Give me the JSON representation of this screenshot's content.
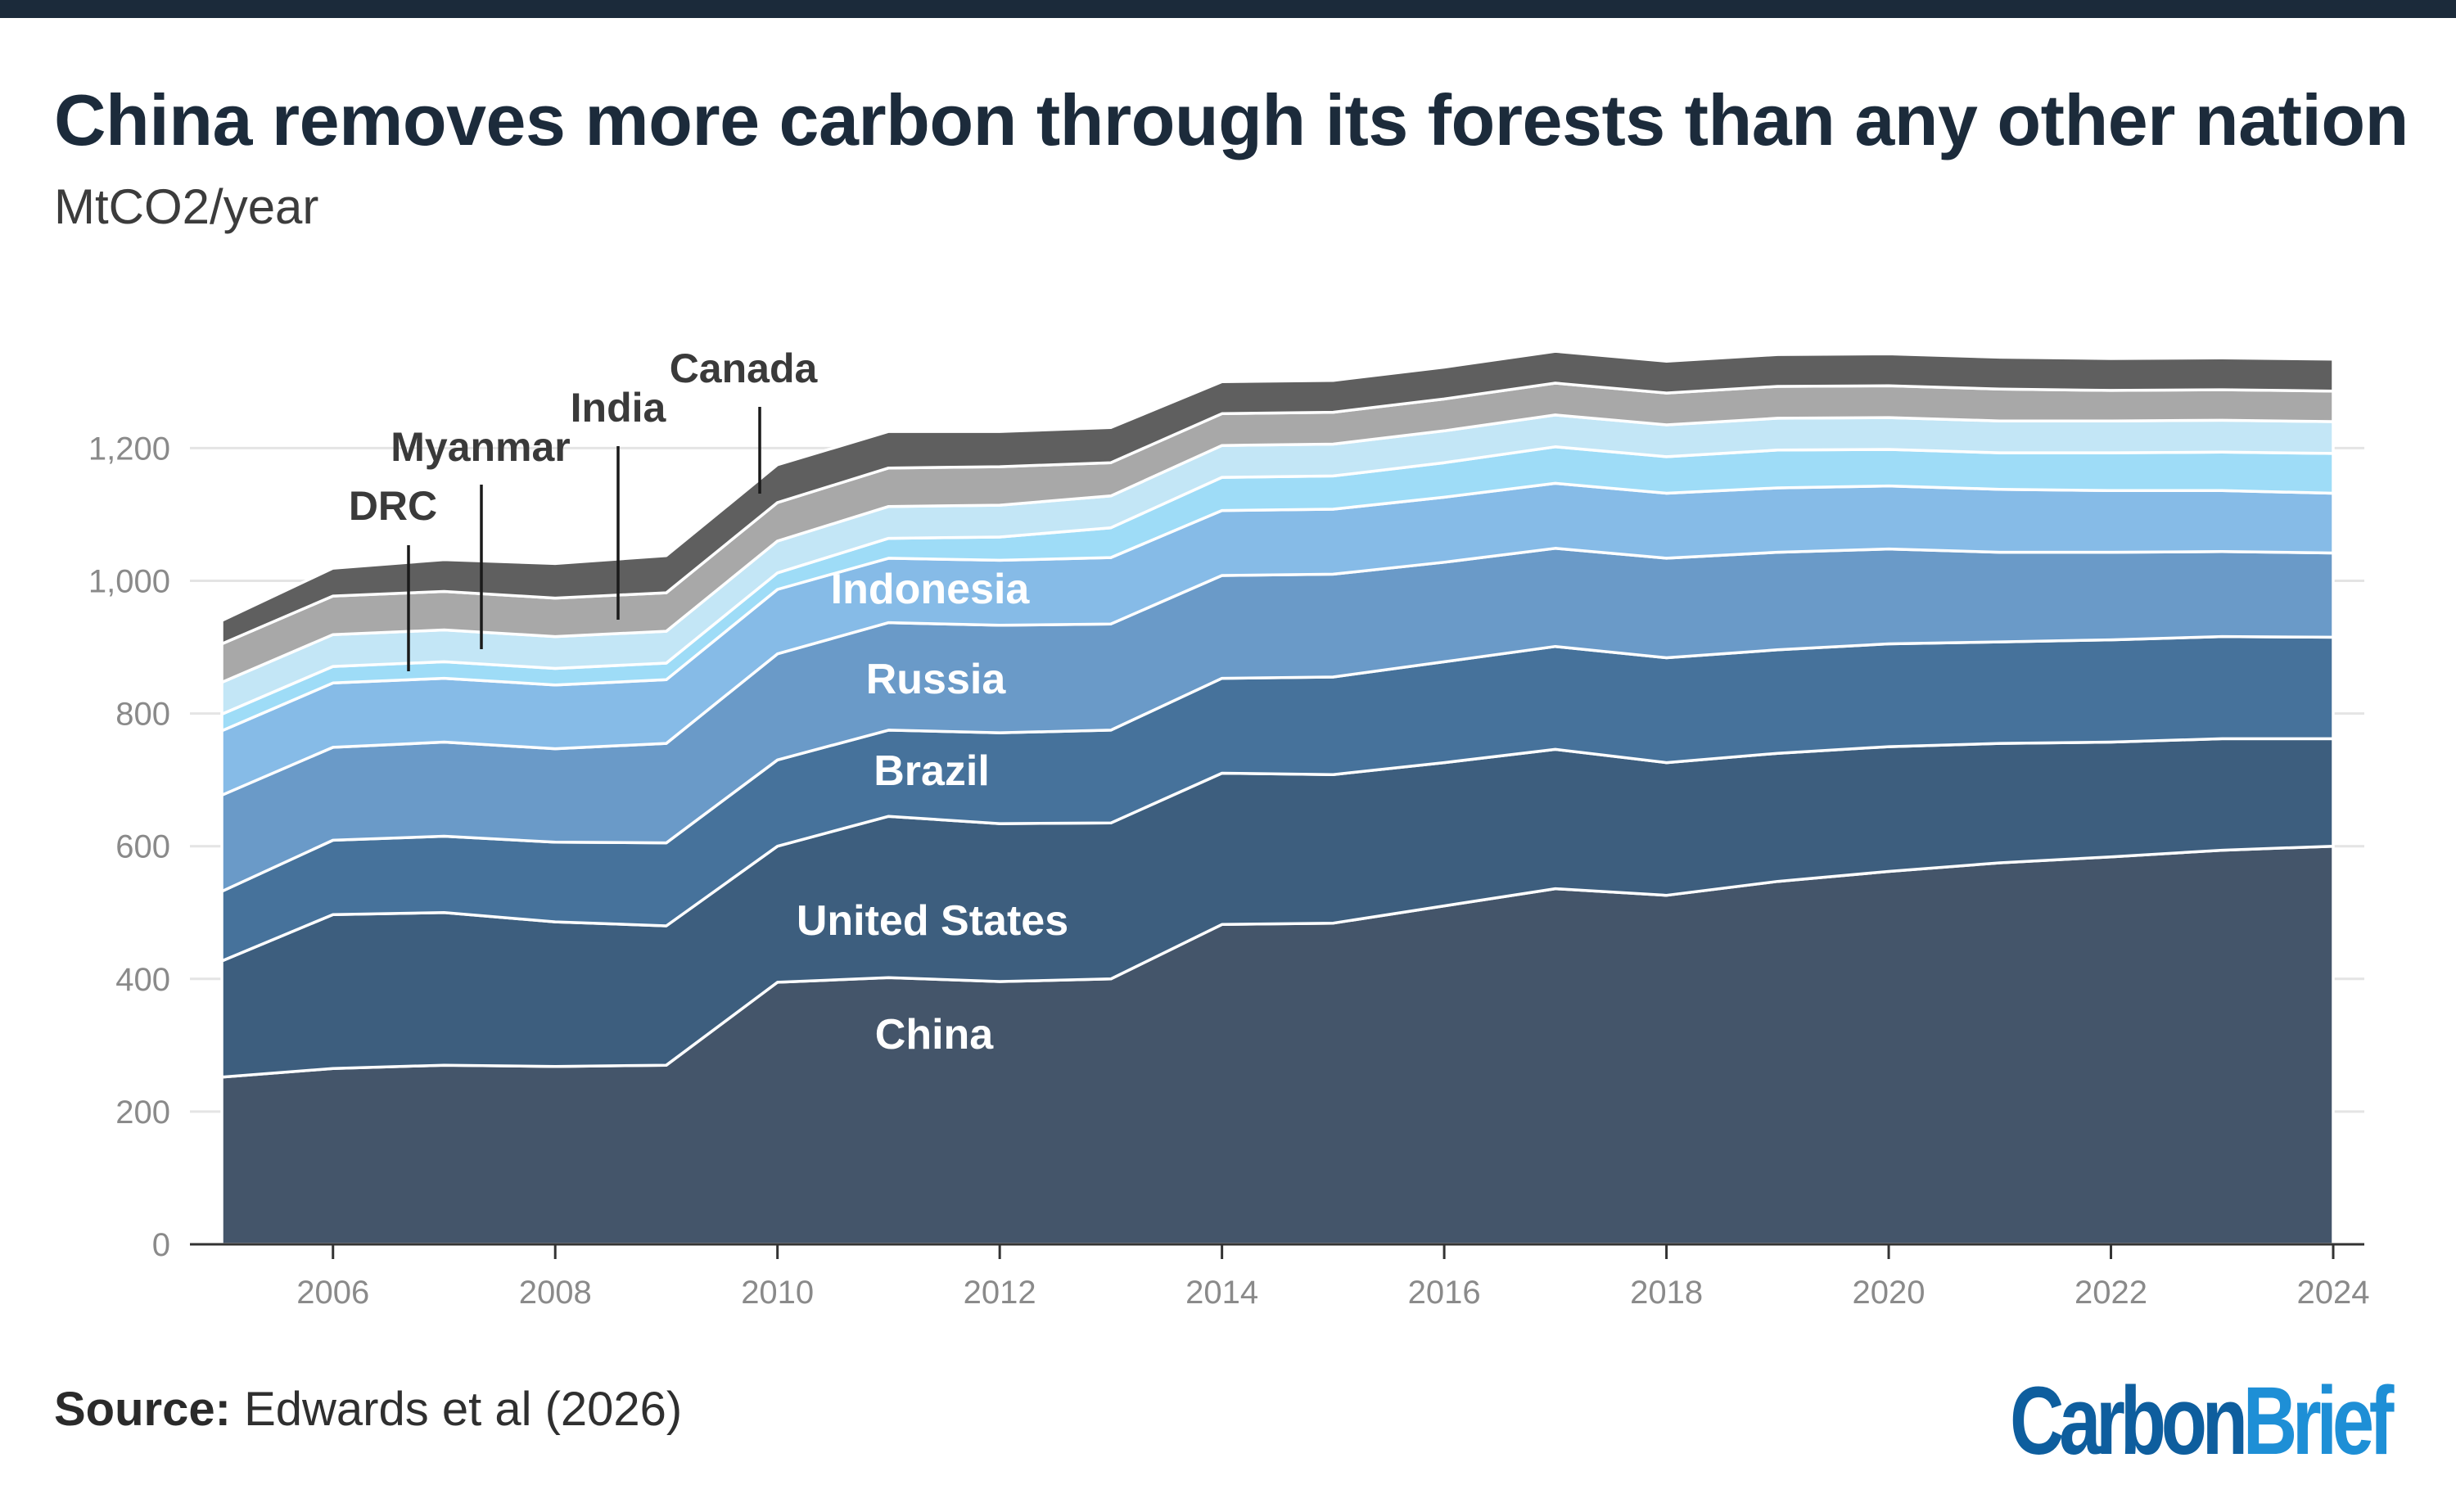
{
  "title": "China removes more carbon through its forests than any other nation",
  "subtitle": "MtCO2/year",
  "source": {
    "label": "Source:",
    "text": "Edwards et al (2026)"
  },
  "logo": {
    "part1": "Carbon",
    "part2": "Brief"
  },
  "chart_data": {
    "type": "area",
    "stacked": true,
    "x": [
      2005,
      2006,
      2007,
      2008,
      2009,
      2010,
      2011,
      2012,
      2013,
      2014,
      2015,
      2016,
      2017,
      2018,
      2019,
      2020,
      2021,
      2022,
      2023,
      2024
    ],
    "ylim": [
      0,
      1400
    ],
    "yticks": [
      0,
      200,
      400,
      600,
      800,
      1000,
      1200
    ],
    "ytick_labels": [
      "0",
      "200",
      "400",
      "600",
      "800",
      "1,000",
      "1,200"
    ],
    "xticks": [
      2006,
      2008,
      2010,
      2012,
      2014,
      2016,
      2018,
      2020,
      2022,
      2024
    ],
    "xtick_labels": [
      "2006",
      "2008",
      "2010",
      "2012",
      "2014",
      "2016",
      "2018",
      "2020",
      "2022",
      "2024"
    ],
    "grid": true,
    "series": [
      {
        "name": "China",
        "color": "#44556a",
        "values": [
          252,
          265,
          270,
          268,
          270,
          395,
          402,
          396,
          400,
          482,
          484,
          510,
          536,
          526,
          547,
          562,
          575,
          584,
          594,
          600
        ]
      },
      {
        "name": "United States",
        "color": "#3d5e7e",
        "values": [
          175,
          232,
          230,
          218,
          210,
          205,
          243,
          238,
          235,
          228,
          224,
          216,
          210,
          200,
          193,
          188,
          180,
          173,
          168,
          162
        ]
      },
      {
        "name": "Brazil",
        "color": "#46729b",
        "values": [
          105,
          112,
          115,
          120,
          125,
          130,
          130,
          137,
          140,
          143,
          147,
          152,
          155,
          158,
          156,
          155,
          153,
          154,
          154,
          153
        ]
      },
      {
        "name": "Russia",
        "color": "#6a9ac8",
        "values": [
          145,
          140,
          142,
          141,
          150,
          160,
          162,
          162,
          160,
          155,
          155,
          150,
          148,
          150,
          147,
          143,
          135,
          132,
          128,
          127
        ]
      },
      {
        "name": "Indonesia",
        "color": "#86bbe7",
        "values": [
          97,
          97,
          96,
          96,
          96,
          97,
          97,
          98,
          100,
          98,
          98,
          98,
          98,
          98,
          97,
          95,
          95,
          93,
          92,
          90
        ]
      },
      {
        "name": "DRC",
        "color": "#9edcf7",
        "values": [
          25,
          25,
          25,
          25,
          25,
          25,
          30,
          35,
          45,
          50,
          50,
          52,
          55,
          55,
          57,
          55,
          55,
          57,
          58,
          60
        ]
      },
      {
        "name": "Myanmar",
        "color": "#c3e6f6",
        "values": [
          48,
          48,
          48,
          48,
          48,
          48,
          48,
          48,
          48,
          48,
          48,
          48,
          48,
          48,
          48,
          48,
          48,
          48,
          48,
          48
        ]
      },
      {
        "name": "India",
        "color": "#a8a8a8",
        "values": [
          58,
          58,
          58,
          58,
          58,
          58,
          58,
          58,
          50,
          48,
          48,
          48,
          48,
          48,
          48,
          48,
          48,
          46,
          46,
          46
        ]
      },
      {
        "name": "Canada",
        "color": "#5f5f5f",
        "values": [
          35,
          42,
          48,
          52,
          56,
          57,
          55,
          53,
          53,
          48,
          48,
          48,
          48,
          48,
          48,
          48,
          48,
          48,
          48,
          48
        ]
      }
    ],
    "area_labels": [
      {
        "text": "China",
        "series": "China"
      },
      {
        "text": "United States",
        "series": "United States"
      },
      {
        "text": "Brazil",
        "series": "Brazil"
      },
      {
        "text": "Russia",
        "series": "Russia"
      },
      {
        "text": "Indonesia",
        "series": "Indonesia"
      }
    ],
    "callouts": [
      {
        "text": "DRC",
        "series": "DRC"
      },
      {
        "text": "Myanmar",
        "series": "Myanmar"
      },
      {
        "text": "India",
        "series": "India"
      },
      {
        "text": "Canada",
        "series": "Canada"
      }
    ]
  }
}
